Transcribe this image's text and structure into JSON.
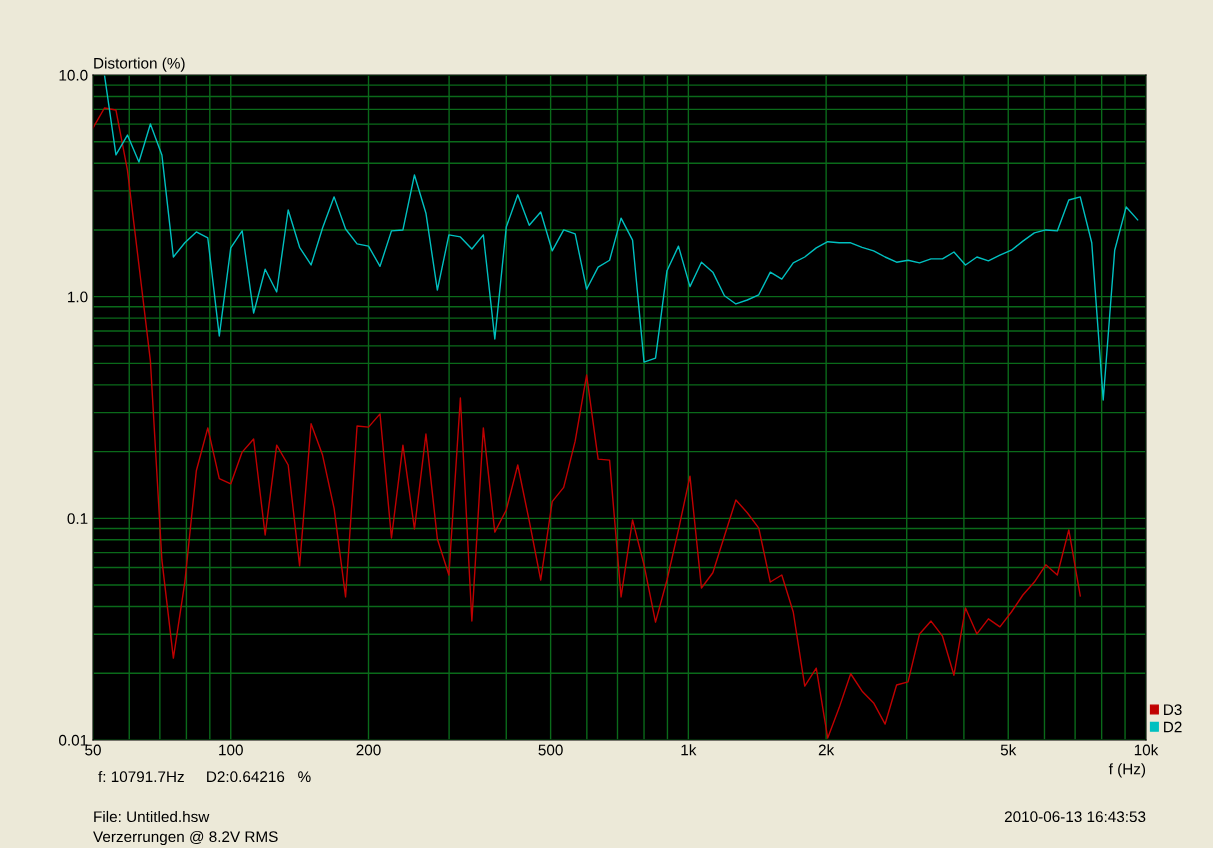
{
  "chart_data": {
    "type": "line",
    "ylabel": "Distortion (%)",
    "xlabel": "f (Hz)",
    "annotations": [
      "f: 10791.7Hz     D2:0.64216   %",
      "File: Untitled.hsw",
      "Verzerrungen @ 8.2V RMS",
      "2010-06-13 16:43:53"
    ],
    "log": "xy",
    "grid": true,
    "legend": "bottom right",
    "marker": "none",
    "line_style": "solid",
    "xlim": [
      50,
      10000
    ],
    "ylim": [
      0.01,
      10
    ],
    "xticks": [
      50,
      100,
      200,
      500,
      {
        "value": 1000,
        "label": "1k"
      },
      {
        "value": 2000,
        "label": "2k"
      },
      {
        "value": 5000,
        "label": "5k"
      },
      {
        "value": 10000,
        "label": "10k"
      }
    ],
    "yticks": [
      {
        "value": 0.01,
        "label": "0.01"
      },
      {
        "value": 0.1,
        "label": "0.1"
      },
      {
        "value": 1,
        "label": "1.0"
      },
      {
        "value": 10,
        "label": "10.0"
      }
    ],
    "series": [
      {
        "name": "D3",
        "color": "#c00000",
        "x": [
          50,
          52.97,
          56.12,
          59.46,
          63,
          66.74,
          70.71,
          74.92,
          79.37,
          84.09,
          89.09,
          94.39,
          100,
          105.9,
          112.2,
          118.9,
          126,
          133.5,
          141.4,
          149.8,
          158.7,
          168.2,
          178.2,
          188.8,
          200,
          211.9,
          224.5,
          237.8,
          252,
          267,
          282.8,
          299.7,
          317.5,
          336.4,
          356.4,
          377.6,
          400,
          423.8,
          449,
          475.7,
          504,
          534,
          565.7,
          599.3,
          635,
          672.7,
          712.7,
          755.1,
          800,
          847.6,
          898,
          951.4,
          1008,
          1068,
          1131,
          1199,
          1270,
          1345,
          1425,
          1510,
          1600,
          1695,
          1796,
          1903,
          2016,
          2136,
          2263,
          2397,
          2540,
          2691,
          2851,
          3020,
          3200,
          3390,
          3592,
          3805,
          4032,
          4271,
          4525,
          4795,
          5080,
          5382,
          5702,
          6041,
          6400,
          6781,
          7184
        ],
        "values": [
          5.77,
          7.1,
          6.95,
          3.72,
          1.39,
          0.513,
          0.0649,
          0.0234,
          0.0516,
          0.164,
          0.256,
          0.151,
          0.143,
          0.199,
          0.228,
          0.0841,
          0.214,
          0.174,
          0.061,
          0.267,
          0.193,
          0.111,
          0.0442,
          0.261,
          0.258,
          0.296,
          0.0815,
          0.214,
          0.0895,
          0.24,
          0.0807,
          0.0555,
          0.349,
          0.0344,
          0.256,
          0.0867,
          0.109,
          0.174,
          0.0973,
          0.0527,
          0.119,
          0.138,
          0.223,
          0.443,
          0.185,
          0.183,
          0.0442,
          0.0984,
          0.0617,
          0.034,
          0.0527,
          0.0887,
          0.155,
          0.0485,
          0.0568,
          0.0832,
          0.121,
          0.106,
          0.0904,
          0.0516,
          0.0555,
          0.0378,
          0.0175,
          0.0211,
          0.0102,
          0.014,
          0.0199,
          0.0166,
          0.0147,
          0.0118,
          0.0177,
          0.0183,
          0.0301,
          0.0344,
          0.0294,
          0.0196,
          0.0394,
          0.0301,
          0.0352,
          0.0324,
          0.0378,
          0.0451,
          0.0516,
          0.0617,
          0.0555,
          0.0887,
          0.0447
        ]
      },
      {
        "name": "D2",
        "color": "#00c0c0",
        "x": [
          52.97,
          56.12,
          59.46,
          63,
          66.74,
          70.71,
          74.92,
          79.37,
          84.09,
          89.09,
          94.39,
          100,
          105.9,
          112.2,
          118.9,
          126,
          133.5,
          141.4,
          149.8,
          158.7,
          168.2,
          178.2,
          188.8,
          200,
          211.9,
          224.5,
          237.8,
          252,
          267,
          282.8,
          299.7,
          317.5,
          336.4,
          356.4,
          377.6,
          400,
          423.8,
          449,
          475.7,
          504,
          534,
          565.7,
          599.3,
          635,
          672.7,
          712.7,
          755.1,
          800,
          847.6,
          898,
          951.4,
          1008,
          1068,
          1131,
          1199,
          1270,
          1345,
          1425,
          1510,
          1600,
          1695,
          1796,
          1903,
          2016,
          2136,
          2263,
          2397,
          2540,
          2691,
          2851,
          3020,
          3200,
          3390,
          3592,
          3805,
          4032,
          4271,
          4525,
          4795,
          5080,
          5382,
          5702,
          6041,
          6400,
          6781,
          7184,
          7611,
          8063,
          8543,
          9051,
          9589
        ],
        "values": [
          10,
          4.36,
          5.36,
          4.05,
          6.01,
          4.36,
          1.51,
          1.75,
          1.96,
          1.84,
          0.665,
          1.66,
          1.98,
          0.843,
          1.33,
          1.05,
          2.46,
          1.67,
          1.39,
          2.04,
          2.82,
          2.02,
          1.73,
          1.69,
          1.37,
          1.98,
          2.0,
          3.54,
          2.38,
          1.07,
          1.9,
          1.86,
          1.64,
          1.9,
          0.644,
          2.06,
          2.88,
          2.1,
          2.41,
          1.61,
          2.0,
          1.92,
          1.08,
          1.36,
          1.46,
          2.26,
          1.8,
          0.507,
          0.528,
          1.31,
          1.69,
          1.11,
          1.43,
          1.29,
          1.01,
          0.927,
          0.966,
          1.02,
          1.29,
          1.2,
          1.42,
          1.51,
          1.66,
          1.77,
          1.75,
          1.75,
          1.67,
          1.61,
          1.51,
          1.43,
          1.46,
          1.42,
          1.48,
          1.48,
          1.59,
          1.39,
          1.51,
          1.45,
          1.54,
          1.62,
          1.78,
          1.94,
          2.0,
          1.98,
          2.73,
          2.82,
          1.75,
          0.342,
          1.62,
          2.54,
          2.22
        ]
      }
    ]
  }
}
